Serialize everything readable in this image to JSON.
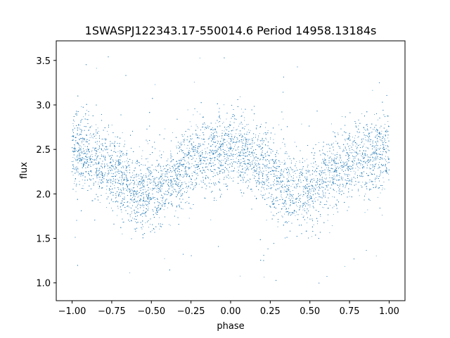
{
  "chart_data": {
    "type": "scatter",
    "title": "1SWASPJ122343.17-550014.6 Period 14958.13184s",
    "xlabel": "phase",
    "ylabel": "flux",
    "xlim": [
      -1.1,
      1.1
    ],
    "ylim": [
      0.8,
      3.72
    ],
    "xticks": [
      -1.0,
      -0.75,
      -0.5,
      -0.25,
      0.0,
      0.25,
      0.5,
      0.75,
      1.0
    ],
    "xtick_labels": [
      "−1.00",
      "−0.75",
      "−0.50",
      "−0.25",
      "0.00",
      "0.25",
      "0.50",
      "0.75",
      "1.00"
    ],
    "yticks": [
      1.0,
      1.5,
      2.0,
      2.5,
      3.0,
      3.5
    ],
    "ytick_labels": [
      "1.0",
      "1.5",
      "2.0",
      "2.5",
      "3.0",
      "3.5"
    ],
    "grid": false,
    "point_color": "#1f77b4",
    "series": [
      {
        "x": [
          -1.0,
          -0.95,
          -0.9,
          -0.85,
          -0.8,
          -0.75,
          -0.7,
          -0.65,
          -0.6,
          -0.55,
          -0.5,
          -0.45,
          -0.4,
          -0.35,
          -0.3,
          -0.25,
          -0.2,
          -0.15,
          -0.1,
          -0.05,
          0.0,
          0.05,
          0.1,
          0.15,
          0.2,
          0.25,
          0.3,
          0.35,
          0.4,
          0.45,
          0.5,
          0.55,
          0.6,
          0.65,
          0.7,
          0.75,
          0.8,
          0.85,
          0.9,
          0.95,
          1.0
        ],
        "y": [
          2.45,
          2.48,
          2.45,
          2.4,
          2.35,
          2.28,
          2.2,
          2.12,
          2.05,
          2.02,
          2.04,
          2.06,
          2.12,
          2.22,
          2.3,
          2.36,
          2.42,
          2.45,
          2.46,
          2.47,
          2.48,
          2.46,
          2.42,
          2.38,
          2.32,
          2.25,
          2.16,
          2.1,
          2.05,
          2.02,
          2.02,
          2.05,
          2.14,
          2.24,
          2.3,
          2.35,
          2.38,
          2.42,
          2.44,
          2.45,
          2.46
        ],
        "spread": 0.22,
        "outlier_range": [
          0.95,
          3.6
        ],
        "n_points": 14000
      }
    ]
  }
}
